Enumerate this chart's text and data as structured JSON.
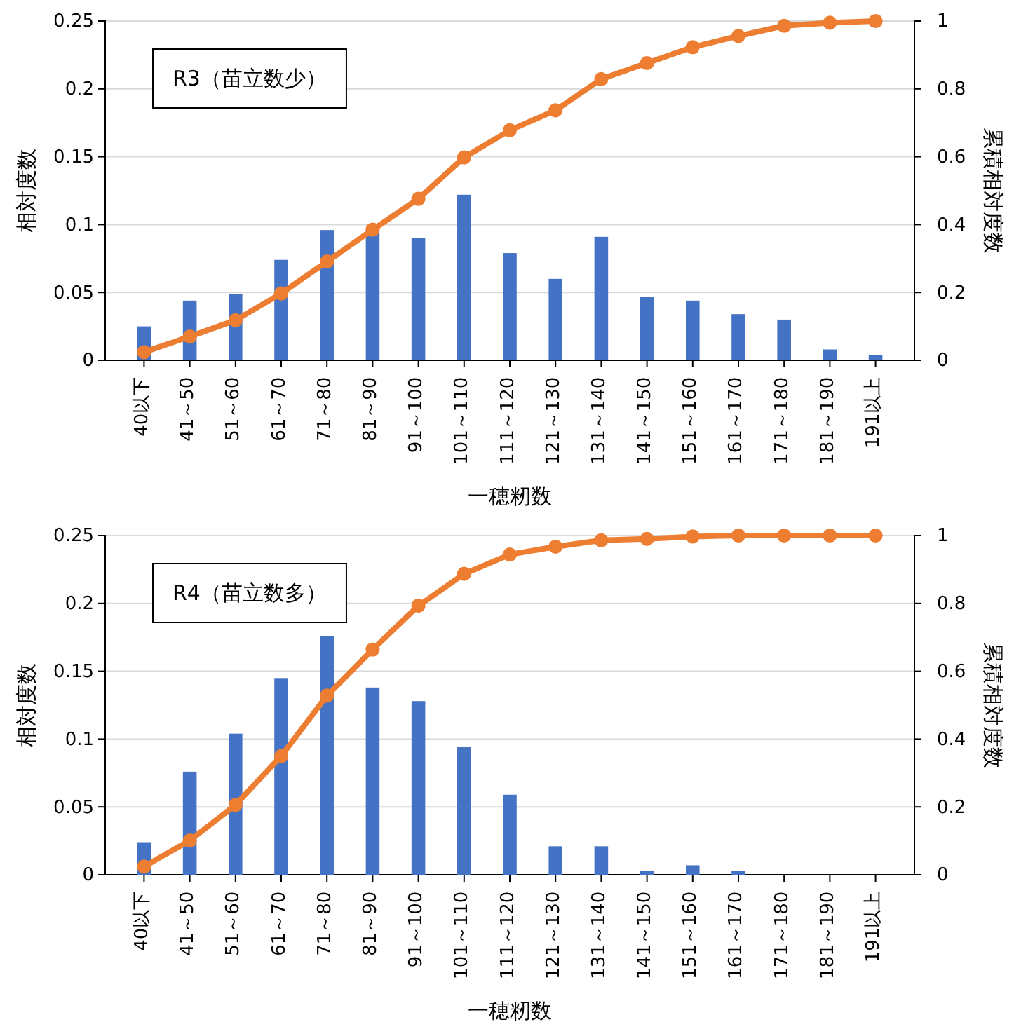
{
  "chart_data": [
    {
      "type": "bar",
      "title": "R3（苗立数少）",
      "xlabel": "一穂籾数",
      "ylabel": "相対度数",
      "y2label": "累積相対度数",
      "categories": [
        "40以下",
        "41～50",
        "51～60",
        "61～70",
        "71～80",
        "81～90",
        "91～100",
        "101～110",
        "111～120",
        "121～130",
        "131～140",
        "141～150",
        "151～160",
        "161～170",
        "171～180",
        "181～190",
        "191以上"
      ],
      "series": [
        {
          "color": "#4472c4",
          "values": [
            0.025,
            0.044,
            0.049,
            0.074,
            0.096,
            0.095,
            0.09,
            0.122,
            0.079,
            0.06,
            0.091,
            0.047,
            0.044,
            0.034,
            0.03,
            0.008,
            0.004
          ]
        },
        {
          "type": "line",
          "axis": "y2",
          "color": "#ed7d31",
          "values": [
            0.024,
            0.07,
            0.118,
            0.197,
            0.291,
            0.385,
            0.476,
            0.598,
            0.678,
            0.737,
            0.829,
            0.876,
            0.923,
            0.956,
            0.986,
            0.995,
            1.0
          ]
        }
      ],
      "ylim": [
        0,
        0.25
      ],
      "yticks": [
        0,
        0.05,
        0.1,
        0.15,
        0.2,
        0.25
      ],
      "y2lim": [
        0,
        1
      ],
      "y2ticks": [
        0,
        0.2,
        0.4,
        0.6,
        0.8,
        1
      ],
      "grid": "y",
      "marker": "circle",
      "line_style": "solid"
    },
    {
      "type": "bar",
      "title": "R4（苗立数多）",
      "xlabel": "一穂籾数",
      "ylabel": "相対度数",
      "y2label": "累積相対度数",
      "categories": [
        "40以下",
        "41～50",
        "51～60",
        "61～70",
        "71～80",
        "81～90",
        "91～100",
        "101～110",
        "111～120",
        "121～130",
        "131～140",
        "141～150",
        "151～160",
        "161～170",
        "171～180",
        "181～190",
        "191以上"
      ],
      "series": [
        {
          "color": "#4472c4",
          "values": [
            0.024,
            0.076,
            0.104,
            0.145,
            0.176,
            0.138,
            0.128,
            0.094,
            0.059,
            0.021,
            0.021,
            0.003,
            0.007,
            0.003,
            0,
            0,
            0
          ]
        },
        {
          "type": "line",
          "axis": "y2",
          "color": "#ed7d31",
          "values": [
            0.024,
            0.101,
            0.206,
            0.35,
            0.528,
            0.664,
            0.793,
            0.887,
            0.944,
            0.967,
            0.986,
            0.99,
            0.997,
            1.0,
            1.0,
            1.0,
            1.0
          ]
        }
      ],
      "ylim": [
        0,
        0.25
      ],
      "yticks": [
        0,
        0.05,
        0.1,
        0.15,
        0.2,
        0.25
      ],
      "y2lim": [
        0,
        1
      ],
      "y2ticks": [
        0,
        0.2,
        0.4,
        0.6,
        0.8,
        1
      ],
      "grid": "y",
      "marker": "circle",
      "line_style": "solid"
    }
  ]
}
